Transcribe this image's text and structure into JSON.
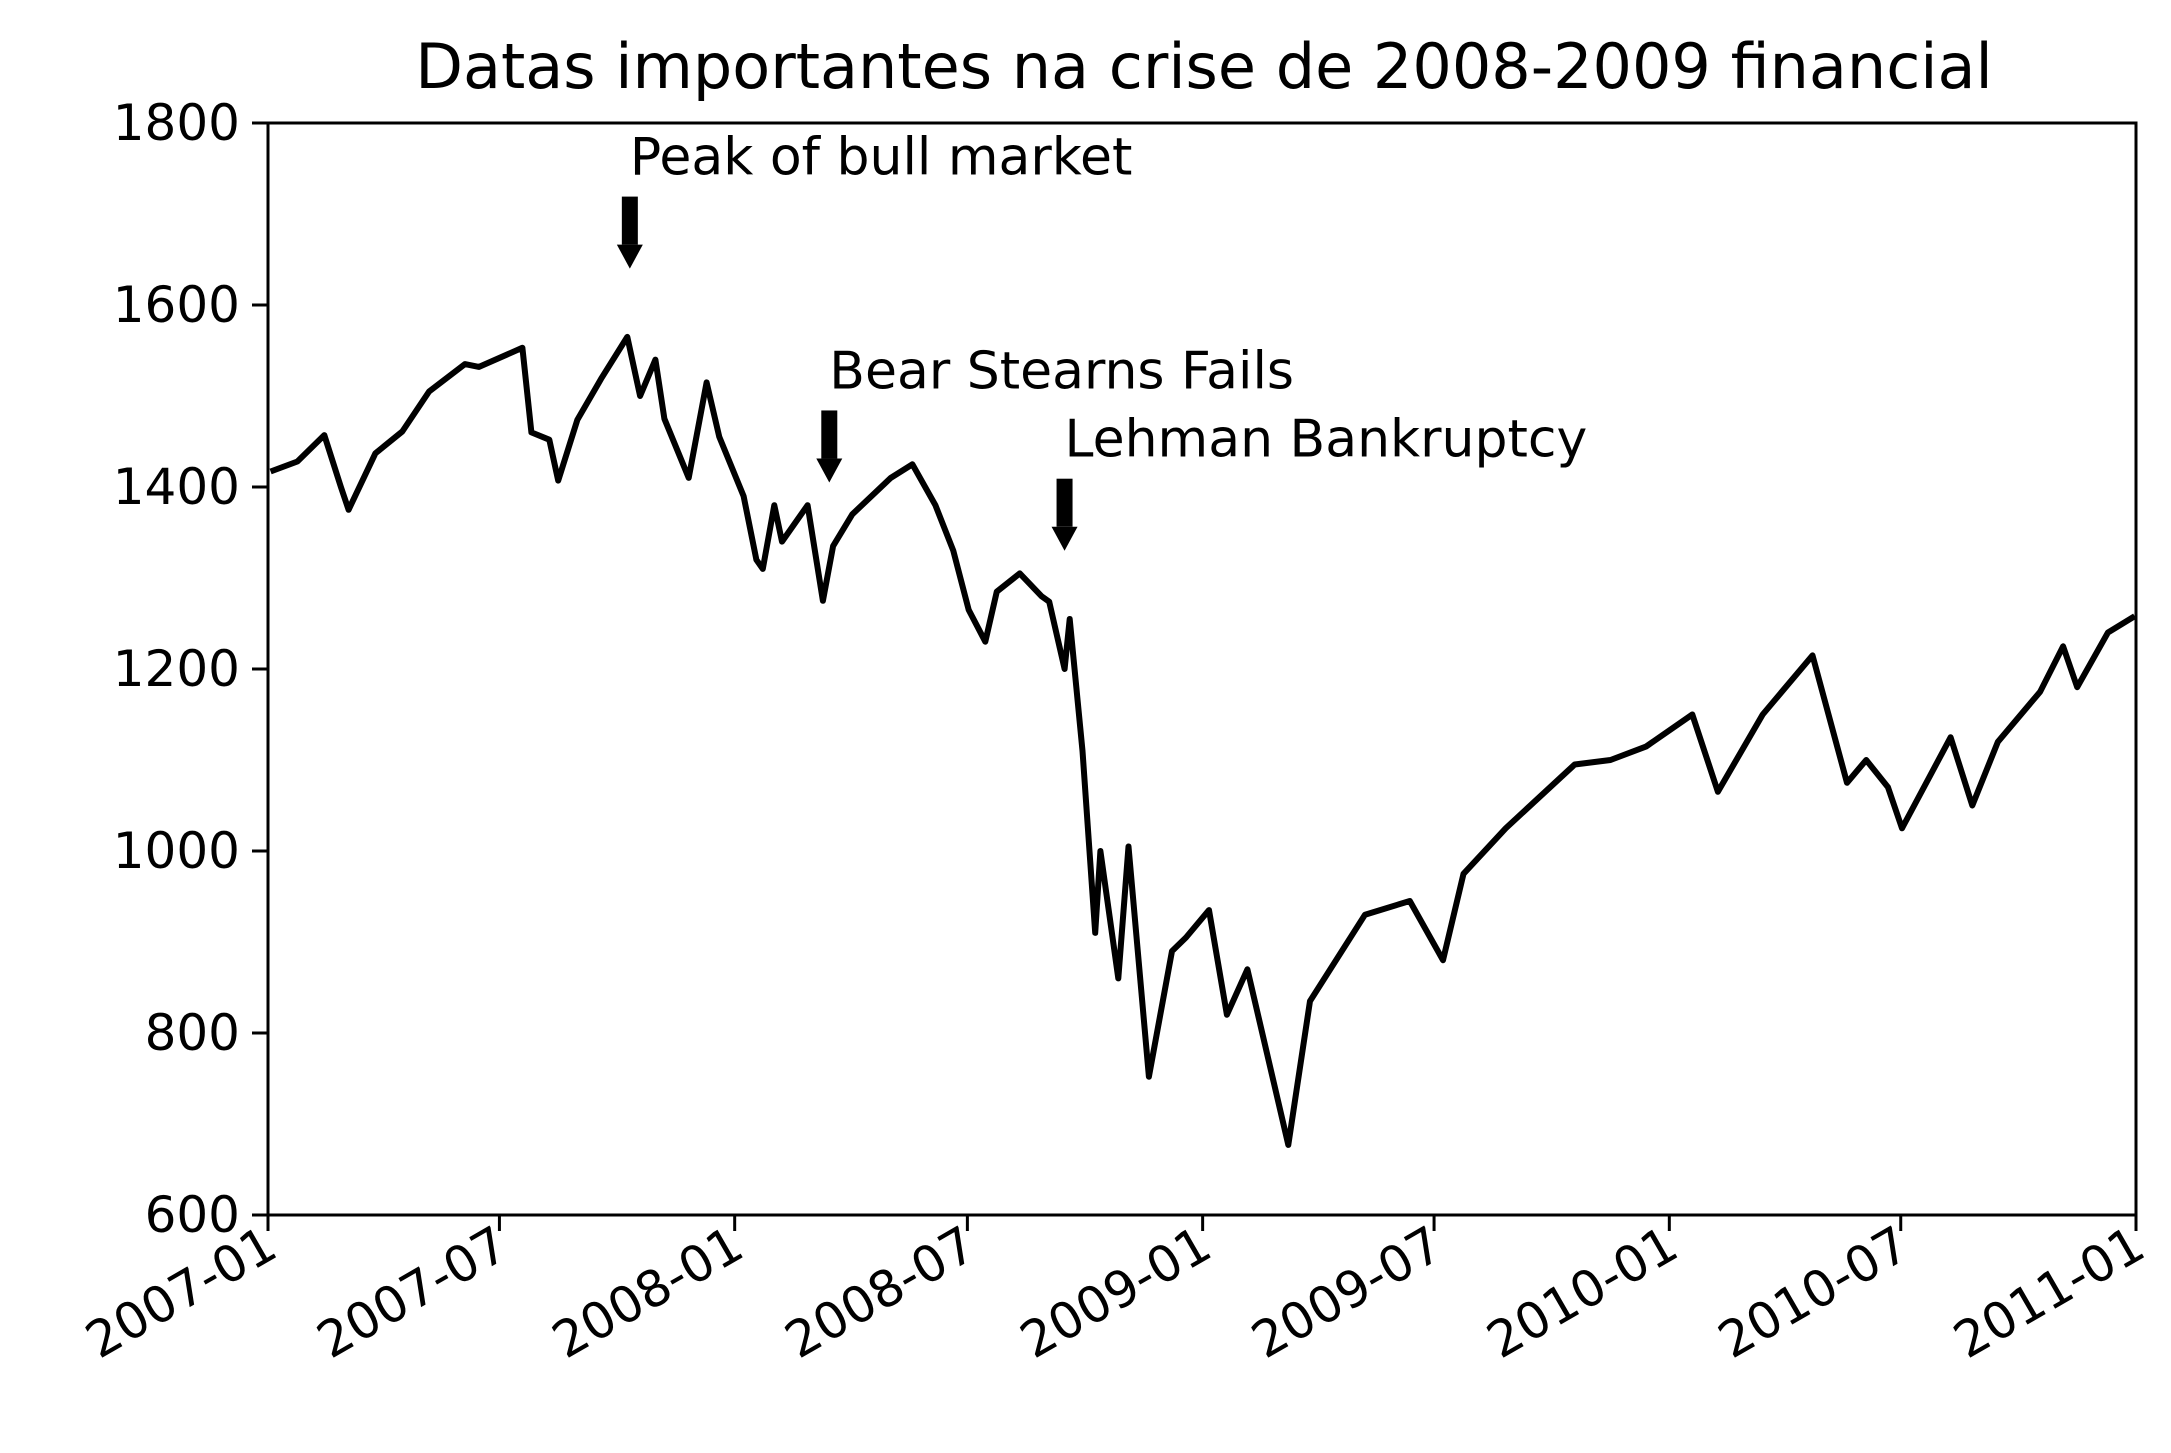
{
  "chart_data": {
    "type": "line",
    "title": "Datas importantes na crise de 2008-2009 financial",
    "xlabel": "",
    "ylabel": "",
    "xlim": [
      "2007-01-01",
      "2011-01-01"
    ],
    "ylim": [
      600,
      1800
    ],
    "x_ticks": [
      "2007-01",
      "2007-07",
      "2008-01",
      "2008-07",
      "2009-01",
      "2009-07",
      "2010-01",
      "2010-07",
      "2011-01"
    ],
    "y_ticks": [
      600,
      800,
      1000,
      1200,
      1400,
      1600,
      1800
    ],
    "grid": false,
    "legend": "none",
    "line_color": "#000000",
    "series": [
      {
        "x": [
          "2007-01-03",
          "2007-01-24",
          "2007-02-14",
          "2007-02-27",
          "2007-03-05",
          "2007-03-26",
          "2007-04-16",
          "2007-05-07",
          "2007-06-04",
          "2007-06-15",
          "2007-07-19",
          "2007-07-26",
          "2007-08-09",
          "2007-08-16",
          "2007-08-31",
          "2007-09-19",
          "2007-10-09",
          "2007-10-19",
          "2007-10-31",
          "2007-11-07",
          "2007-11-26",
          "2007-12-10",
          "2007-12-20",
          "2008-01-08",
          "2008-01-18",
          "2008-01-23",
          "2008-02-01",
          "2008-02-07",
          "2008-02-27",
          "2008-03-10",
          "2008-03-18",
          "2008-04-02",
          "2008-05-02",
          "2008-05-19",
          "2008-06-06",
          "2008-06-20",
          "2008-07-02",
          "2008-07-15",
          "2008-07-24",
          "2008-08-11",
          "2008-08-28",
          "2008-09-03",
          "2008-09-15",
          "2008-09-19",
          "2008-09-29",
          "2008-10-09",
          "2008-10-13",
          "2008-10-27",
          "2008-11-04",
          "2008-11-20",
          "2008-12-08",
          "2008-12-19",
          "2009-01-06",
          "2009-01-20",
          "2009-02-05",
          "2009-03-09",
          "2009-03-26",
          "2009-05-08",
          "2009-06-12",
          "2009-07-08",
          "2009-07-24",
          "2009-08-26",
          "2009-10-19",
          "2009-11-16",
          "2009-12-14",
          "2010-01-19",
          "2010-02-08",
          "2010-03-15",
          "2010-04-23",
          "2010-05-20",
          "2010-06-04",
          "2010-06-21",
          "2010-07-02",
          "2010-08-09",
          "2010-08-26",
          "2010-09-15",
          "2010-10-18",
          "2010-11-05",
          "2010-11-16",
          "2010-12-10",
          "2010-12-31"
        ],
        "y": [
          1417,
          1428,
          1457,
          1400,
          1375,
          1437,
          1461,
          1505,
          1535,
          1532,
          1553,
          1460,
          1452,
          1407,
          1474,
          1520,
          1565,
          1500,
          1540,
          1475,
          1410,
          1515,
          1455,
          1390,
          1320,
          1310,
          1380,
          1340,
          1380,
          1275,
          1335,
          1370,
          1410,
          1425,
          1380,
          1330,
          1265,
          1230,
          1285,
          1305,
          1280,
          1274,
          1200,
          1255,
          1110,
          910,
          1000,
          860,
          1005,
          752,
          890,
          905,
          935,
          820,
          870,
          677,
          835,
          930,
          945,
          880,
          975,
          1025,
          1095,
          1100,
          1115,
          1150,
          1065,
          1150,
          1215,
          1075,
          1100,
          1070,
          1025,
          1125,
          1050,
          1120,
          1175,
          1225,
          1180,
          1240,
          1258
        ]
      }
    ],
    "annotations": [
      {
        "text": "Peak of bull market",
        "x": "2007-10-11",
        "y": 1565
      },
      {
        "text": "Bear Stearns Fails",
        "x": "2008-03-15",
        "y": 1330
      },
      {
        "text": "Lehman Bankruptcy",
        "x": "2008-09-15",
        "y": 1255
      }
    ]
  }
}
